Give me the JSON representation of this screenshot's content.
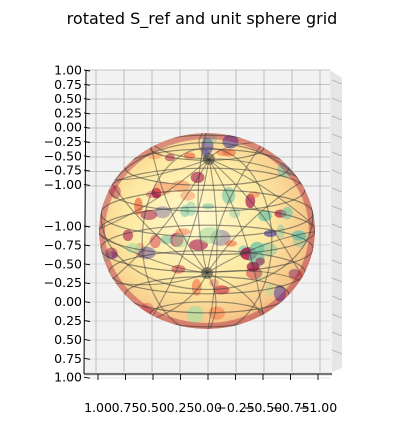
{
  "chart_data": {
    "type": "surface3d",
    "title": "rotated S_ref and unit sphere grid",
    "axes": {
      "z_tick_labels_top": [
        "1.00",
        "0.75",
        "0.50",
        "0.25",
        "0.00",
        "−0.25",
        "−0.50",
        "−0.75",
        "−1.00"
      ],
      "y_tick_labels_left": [
        "−1.00",
        "−0.75",
        "−0.50",
        "−0.25",
        "0.00",
        "0.25",
        "0.50",
        "0.75",
        "1.00"
      ],
      "x_tick_labels_bottom": [
        "1.00",
        "0.75",
        "0.50",
        "0.25",
        "0.00",
        "−0.25",
        "−0.50",
        "−0.75",
        "−1.00"
      ],
      "xlim": [
        -1,
        1
      ],
      "ylim": [
        -1,
        1
      ],
      "zlim": [
        -1,
        1
      ],
      "grid": true
    },
    "surfaces": [
      {
        "name": "S_ref",
        "kind": "sphere",
        "radius": 1,
        "colormap": "Spectral",
        "alpha": 0.6
      },
      {
        "name": "unit sphere grid",
        "kind": "wireframe",
        "radius": 1,
        "color": "#444444"
      }
    ]
  },
  "colors": {
    "pane": "#f2f2f2",
    "grid": "#b0b0b0",
    "wire": "#3a3a3a",
    "spectral_low": "#9e0142",
    "spectral_mid": "#ffffbf",
    "spectral_high": "#5e4fa2",
    "spectral_green": "#66c2a5",
    "spectral_orange": "#f46d43"
  }
}
